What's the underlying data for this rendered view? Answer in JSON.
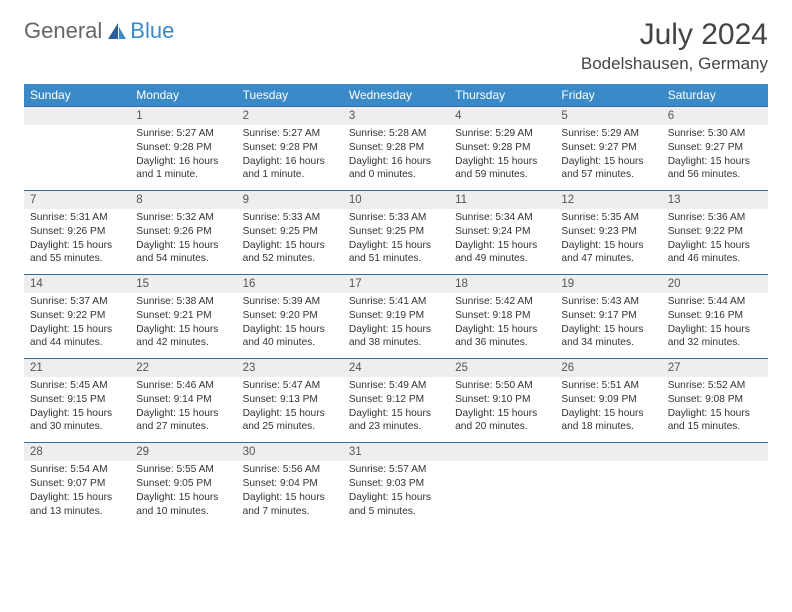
{
  "brand": {
    "part1": "General",
    "part2": "Blue"
  },
  "title": "July 2024",
  "location": "Bodelshausen, Germany",
  "colors": {
    "header_bg": "#3a8ac8",
    "header_text": "#ffffff",
    "daynum_bg": "#eceeef",
    "daynum_border": "#3a6a9a",
    "text": "#333333",
    "brand_gray": "#666666",
    "brand_blue": "#3a8ac8"
  },
  "weekdays": [
    "Sunday",
    "Monday",
    "Tuesday",
    "Wednesday",
    "Thursday",
    "Friday",
    "Saturday"
  ],
  "weeks": [
    {
      "nums": [
        "",
        "1",
        "2",
        "3",
        "4",
        "5",
        "6"
      ],
      "cells": [
        [],
        [
          "Sunrise: 5:27 AM",
          "Sunset: 9:28 PM",
          "Daylight: 16 hours",
          "and 1 minute."
        ],
        [
          "Sunrise: 5:27 AM",
          "Sunset: 9:28 PM",
          "Daylight: 16 hours",
          "and 1 minute."
        ],
        [
          "Sunrise: 5:28 AM",
          "Sunset: 9:28 PM",
          "Daylight: 16 hours",
          "and 0 minutes."
        ],
        [
          "Sunrise: 5:29 AM",
          "Sunset: 9:28 PM",
          "Daylight: 15 hours",
          "and 59 minutes."
        ],
        [
          "Sunrise: 5:29 AM",
          "Sunset: 9:27 PM",
          "Daylight: 15 hours",
          "and 57 minutes."
        ],
        [
          "Sunrise: 5:30 AM",
          "Sunset: 9:27 PM",
          "Daylight: 15 hours",
          "and 56 minutes."
        ]
      ]
    },
    {
      "nums": [
        "7",
        "8",
        "9",
        "10",
        "11",
        "12",
        "13"
      ],
      "cells": [
        [
          "Sunrise: 5:31 AM",
          "Sunset: 9:26 PM",
          "Daylight: 15 hours",
          "and 55 minutes."
        ],
        [
          "Sunrise: 5:32 AM",
          "Sunset: 9:26 PM",
          "Daylight: 15 hours",
          "and 54 minutes."
        ],
        [
          "Sunrise: 5:33 AM",
          "Sunset: 9:25 PM",
          "Daylight: 15 hours",
          "and 52 minutes."
        ],
        [
          "Sunrise: 5:33 AM",
          "Sunset: 9:25 PM",
          "Daylight: 15 hours",
          "and 51 minutes."
        ],
        [
          "Sunrise: 5:34 AM",
          "Sunset: 9:24 PM",
          "Daylight: 15 hours",
          "and 49 minutes."
        ],
        [
          "Sunrise: 5:35 AM",
          "Sunset: 9:23 PM",
          "Daylight: 15 hours",
          "and 47 minutes."
        ],
        [
          "Sunrise: 5:36 AM",
          "Sunset: 9:22 PM",
          "Daylight: 15 hours",
          "and 46 minutes."
        ]
      ]
    },
    {
      "nums": [
        "14",
        "15",
        "16",
        "17",
        "18",
        "19",
        "20"
      ],
      "cells": [
        [
          "Sunrise: 5:37 AM",
          "Sunset: 9:22 PM",
          "Daylight: 15 hours",
          "and 44 minutes."
        ],
        [
          "Sunrise: 5:38 AM",
          "Sunset: 9:21 PM",
          "Daylight: 15 hours",
          "and 42 minutes."
        ],
        [
          "Sunrise: 5:39 AM",
          "Sunset: 9:20 PM",
          "Daylight: 15 hours",
          "and 40 minutes."
        ],
        [
          "Sunrise: 5:41 AM",
          "Sunset: 9:19 PM",
          "Daylight: 15 hours",
          "and 38 minutes."
        ],
        [
          "Sunrise: 5:42 AM",
          "Sunset: 9:18 PM",
          "Daylight: 15 hours",
          "and 36 minutes."
        ],
        [
          "Sunrise: 5:43 AM",
          "Sunset: 9:17 PM",
          "Daylight: 15 hours",
          "and 34 minutes."
        ],
        [
          "Sunrise: 5:44 AM",
          "Sunset: 9:16 PM",
          "Daylight: 15 hours",
          "and 32 minutes."
        ]
      ]
    },
    {
      "nums": [
        "21",
        "22",
        "23",
        "24",
        "25",
        "26",
        "27"
      ],
      "cells": [
        [
          "Sunrise: 5:45 AM",
          "Sunset: 9:15 PM",
          "Daylight: 15 hours",
          "and 30 minutes."
        ],
        [
          "Sunrise: 5:46 AM",
          "Sunset: 9:14 PM",
          "Daylight: 15 hours",
          "and 27 minutes."
        ],
        [
          "Sunrise: 5:47 AM",
          "Sunset: 9:13 PM",
          "Daylight: 15 hours",
          "and 25 minutes."
        ],
        [
          "Sunrise: 5:49 AM",
          "Sunset: 9:12 PM",
          "Daylight: 15 hours",
          "and 23 minutes."
        ],
        [
          "Sunrise: 5:50 AM",
          "Sunset: 9:10 PM",
          "Daylight: 15 hours",
          "and 20 minutes."
        ],
        [
          "Sunrise: 5:51 AM",
          "Sunset: 9:09 PM",
          "Daylight: 15 hours",
          "and 18 minutes."
        ],
        [
          "Sunrise: 5:52 AM",
          "Sunset: 9:08 PM",
          "Daylight: 15 hours",
          "and 15 minutes."
        ]
      ]
    },
    {
      "nums": [
        "28",
        "29",
        "30",
        "31",
        "",
        "",
        ""
      ],
      "cells": [
        [
          "Sunrise: 5:54 AM",
          "Sunset: 9:07 PM",
          "Daylight: 15 hours",
          "and 13 minutes."
        ],
        [
          "Sunrise: 5:55 AM",
          "Sunset: 9:05 PM",
          "Daylight: 15 hours",
          "and 10 minutes."
        ],
        [
          "Sunrise: 5:56 AM",
          "Sunset: 9:04 PM",
          "Daylight: 15 hours",
          "and 7 minutes."
        ],
        [
          "Sunrise: 5:57 AM",
          "Sunset: 9:03 PM",
          "Daylight: 15 hours",
          "and 5 minutes."
        ],
        [],
        [],
        []
      ]
    }
  ]
}
